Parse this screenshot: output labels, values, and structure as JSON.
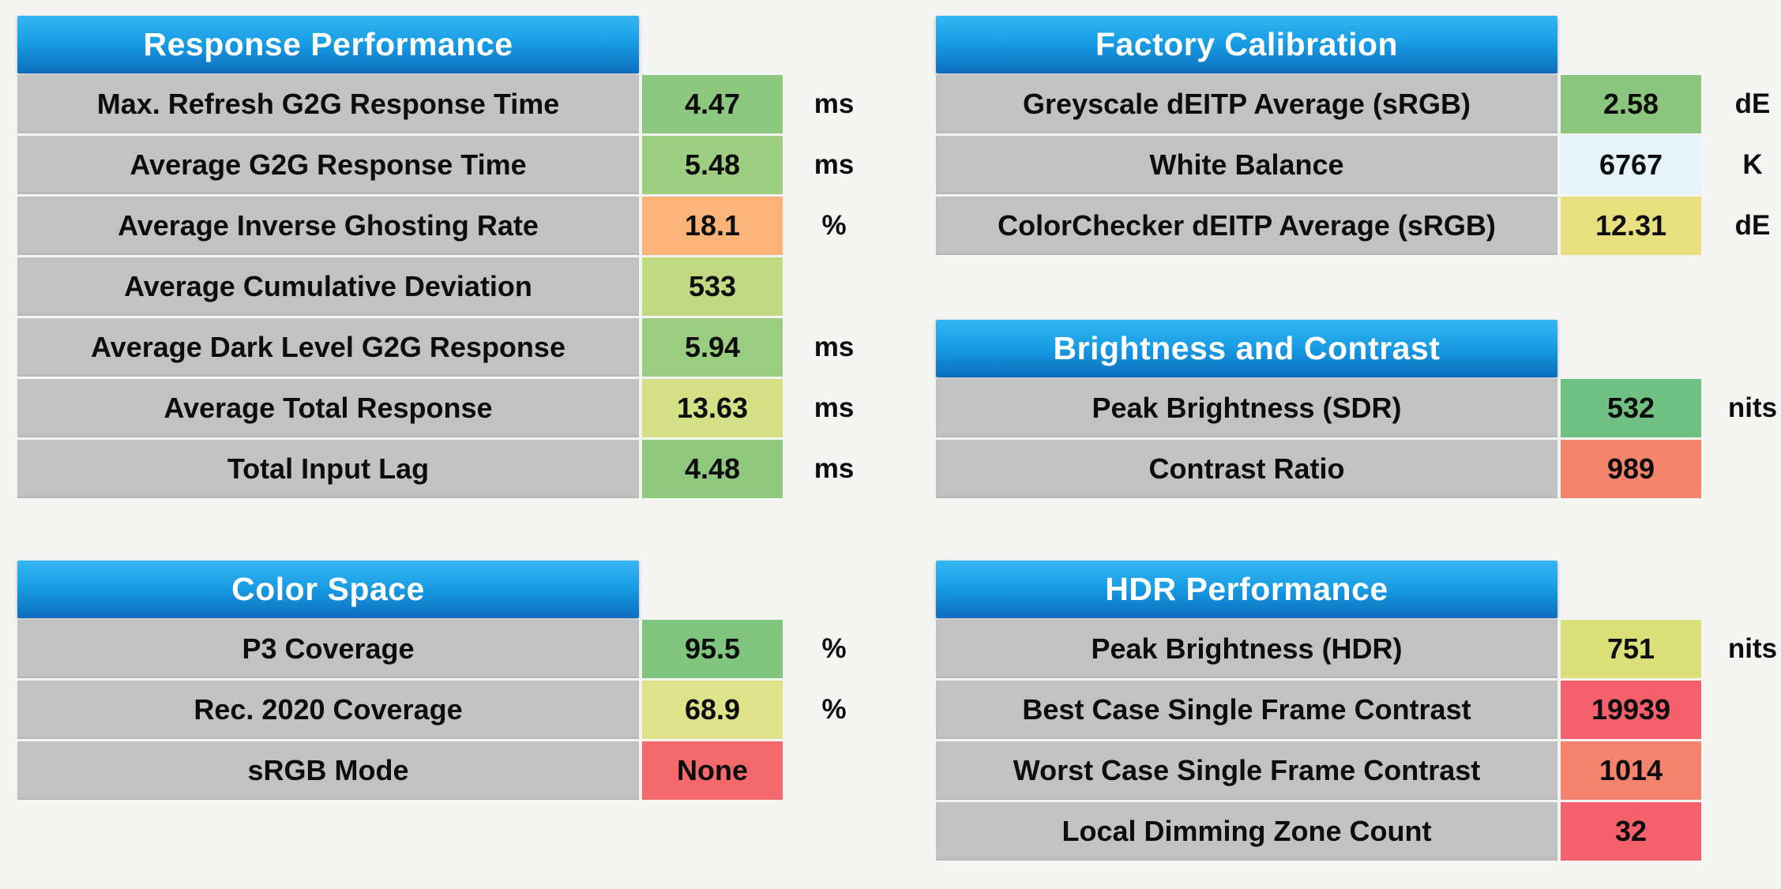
{
  "page": {
    "background": "#F4F4F2",
    "row_background": "#C2C2C2",
    "header_gradient_top": "#35B7F3",
    "header_gradient_bottom": "#0C6DBE",
    "header_text_color": "#FFFFFF"
  },
  "chart_data": [
    {
      "type": "table",
      "title": "Response Performance",
      "rows": [
        {
          "label": "Max. Refresh G2G Response Time",
          "value": "4.47",
          "unit": "ms",
          "color": "#8CC87E"
        },
        {
          "label": "Average G2G Response Time",
          "value": "5.48",
          "unit": "ms",
          "color": "#9ECE81"
        },
        {
          "label": "Average Inverse Ghosting Rate",
          "value": "18.1",
          "unit": "%",
          "color": "#FBB378"
        },
        {
          "label": "Average Cumulative Deviation",
          "value": "533",
          "unit": "",
          "color": "#C1DA82"
        },
        {
          "label": "Average Dark Level G2G Response",
          "value": "5.94",
          "unit": "ms",
          "color": "#9CCE81"
        },
        {
          "label": "Average Total Response",
          "value": "13.63",
          "unit": "ms",
          "color": "#D3E086"
        },
        {
          "label": "Total Input Lag",
          "value": "4.48",
          "unit": "ms",
          "color": "#8FC97E"
        }
      ]
    },
    {
      "type": "table",
      "title": "Factory Calibration",
      "rows": [
        {
          "label": "Greyscale dEITP Average (sRGB)",
          "value": "2.58",
          "unit": "dE",
          "color": "#8AC67D"
        },
        {
          "label": "White Balance",
          "value": "6767",
          "unit": "K",
          "color": "#E5F4FB"
        },
        {
          "label": "ColorChecker dEITP Average (sRGB)",
          "value": "12.31",
          "unit": "dE",
          "color": "#E8DF7E"
        }
      ]
    },
    {
      "type": "table",
      "title": "Brightness and Contrast",
      "rows": [
        {
          "label": "Peak Brightness (SDR)",
          "value": "532",
          "unit": "nits",
          "color": "#70C083"
        },
        {
          "label": "Contrast Ratio",
          "value": "989",
          "unit": "",
          "color": "#F5846C"
        }
      ]
    },
    {
      "type": "table",
      "title": "Color Space",
      "rows": [
        {
          "label": "P3 Coverage",
          "value": "95.5",
          "unit": "%",
          "color": "#80C67F"
        },
        {
          "label": "Rec. 2020 Coverage",
          "value": "68.9",
          "unit": "%",
          "color": "#DEE28A"
        },
        {
          "label": "sRGB Mode",
          "value": "None",
          "unit": "",
          "color": "#F3696C"
        }
      ]
    },
    {
      "type": "table",
      "title": "HDR Performance",
      "rows": [
        {
          "label": "Peak Brightness (HDR)",
          "value": "751",
          "unit": "nits",
          "color": "#DCE07B"
        },
        {
          "label": "Best Case Single Frame Contrast",
          "value": "19939",
          "unit": "",
          "color": "#F4606B"
        },
        {
          "label": "Worst Case Single Frame Contrast",
          "value": "1014",
          "unit": "",
          "color": "#F6836E"
        },
        {
          "label": "Local Dimming Zone Count",
          "value": "32",
          "unit": "",
          "color": "#F4606B"
        }
      ]
    }
  ]
}
